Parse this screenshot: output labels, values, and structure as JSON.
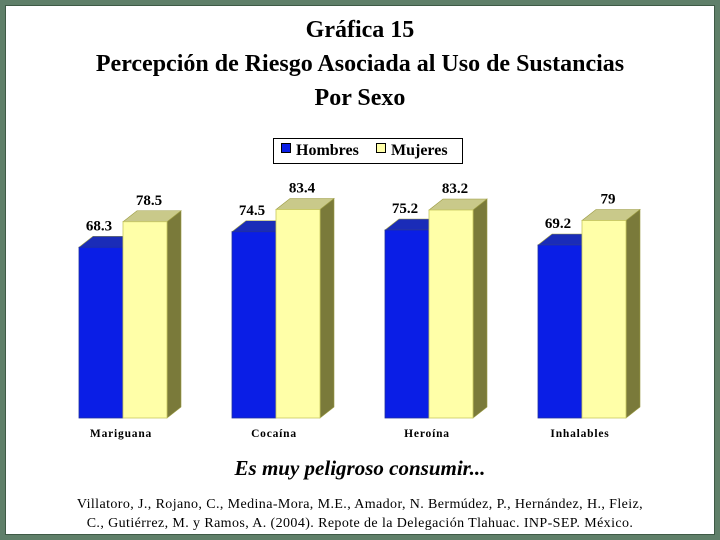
{
  "chart_data": {
    "type": "bar",
    "title": [
      "Gráfica 15",
      "Percepción de Riesgo Asociada al Uso de Sustancias",
      "Por Sexo"
    ],
    "subtitle": "Es muy peligroso consumir...",
    "categories": [
      "Mariguana",
      "Cocaína",
      "Heroína",
      "Inhalables"
    ],
    "series": [
      {
        "name": "Hombres",
        "values": [
          68.3,
          74.5,
          75.2,
          69.2
        ],
        "color": "#0a1ee6"
      },
      {
        "name": "Mujeres",
        "values": [
          78.5,
          83.4,
          83.2,
          79
        ],
        "color": "#ffffa8"
      }
    ],
    "value_labels": [
      [
        "68.3",
        "74.5",
        "75.2",
        "69.2"
      ],
      [
        "78.5",
        "83.4",
        "83.2",
        "79"
      ]
    ],
    "ylim": [
      0,
      100
    ],
    "legend_position": "top-center",
    "grid": false,
    "style": "3d-columns"
  },
  "citation": [
    "Villatoro, J., Rojano, C., Medina-Mora, M.E., Amador, N. Bermúdez, P., Hernández, H., Fleiz,",
    "C., Gutiérrez, M. y Ramos, A. (2004). Repote de la Delegación Tlahuac. INP-SEP. México."
  ],
  "colors": {
    "frame": "#5f7f69",
    "shadow": "#7a7a3a"
  }
}
